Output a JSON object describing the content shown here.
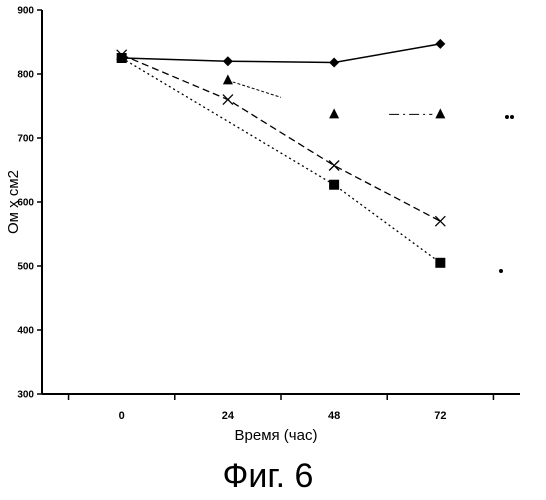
{
  "chart_data": {
    "type": "line",
    "title": "",
    "caption": "Фиг. 6",
    "xlabel": "Время (час)",
    "ylabel": "Ом х см2",
    "x": [
      0,
      24,
      48,
      72
    ],
    "xlim": [
      -18,
      90
    ],
    "ylim": [
      300,
      900
    ],
    "yticks": [
      300,
      400,
      500,
      600,
      700,
      800,
      900
    ],
    "grid": false,
    "legend": "none",
    "series": [
      {
        "marker": "diamond",
        "style": "solid",
        "x": [
          0,
          24,
          48,
          72
        ],
        "values": [
          825,
          820,
          818,
          847
        ]
      },
      {
        "marker": "cross",
        "style": "dashed",
        "x": [
          0,
          24,
          48,
          72
        ],
        "values": [
          830,
          760,
          657,
          570
        ]
      },
      {
        "marker": "square",
        "style": "dotted",
        "x": [
          0,
          48,
          72
        ],
        "values": [
          825,
          627,
          505
        ]
      },
      {
        "marker": "triangle",
        "style": "dash-dot",
        "x": [
          24,
          48,
          72
        ],
        "values": [
          790,
          737,
          737
        ]
      }
    ],
    "tick_labels_x": [
      "0",
      "24",
      "48",
      "72"
    ],
    "tick_labels_y": [
      "300",
      "400",
      "500",
      "600",
      "700",
      "800",
      "900"
    ]
  }
}
